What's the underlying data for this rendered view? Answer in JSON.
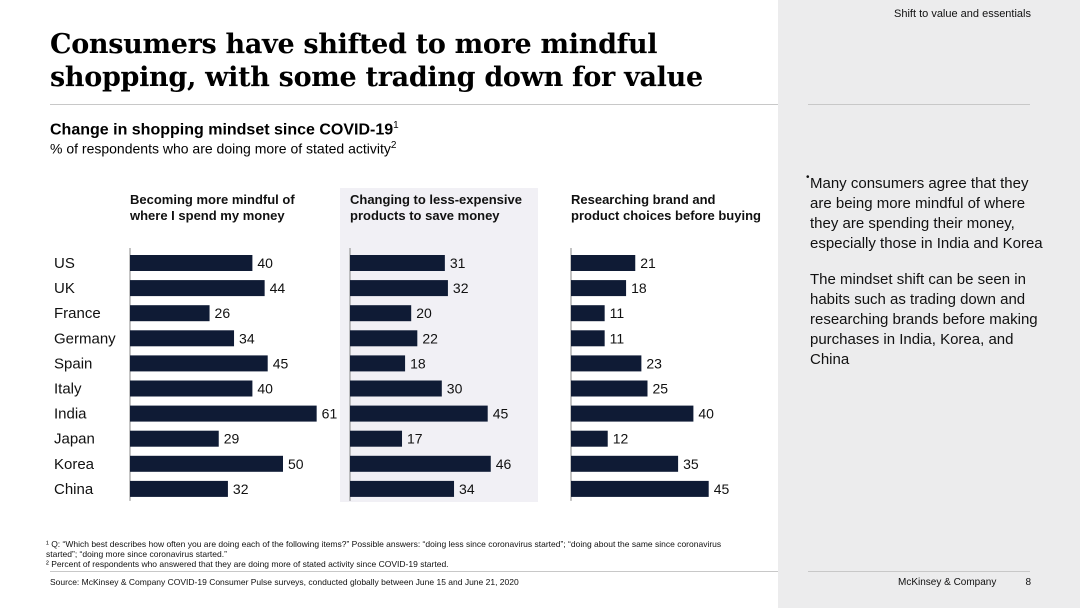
{
  "header": {
    "section_label": "Shift to value and essentials"
  },
  "title": "Consumers have shifted to more mindful shopping, with some trading down for value",
  "chart_title": "Change in shopping mindset since COVID-19",
  "chart_title_sup": "1",
  "chart_subtitle": "% of respondents who are doing more of stated activity",
  "chart_subtitle_sup": "2",
  "chart_data": {
    "type": "bar",
    "orientation": "horizontal",
    "categories": [
      "US",
      "UK",
      "France",
      "Germany",
      "Spain",
      "Italy",
      "India",
      "Japan",
      "Korea",
      "China"
    ],
    "panels": [
      {
        "title": [
          "Becoming more mindful of",
          "where I spend my money"
        ],
        "values": [
          40,
          44,
          26,
          34,
          45,
          40,
          61,
          29,
          50,
          32
        ],
        "highlight": false
      },
      {
        "title": [
          "Changing to less-expensive",
          "products to save money"
        ],
        "values": [
          31,
          32,
          20,
          22,
          18,
          30,
          45,
          17,
          46,
          34
        ],
        "highlight": true
      },
      {
        "title": [
          "Researching brand and",
          "product choices before buying"
        ],
        "values": [
          21,
          18,
          11,
          11,
          23,
          25,
          40,
          12,
          35,
          45
        ],
        "highlight": false
      }
    ],
    "colors": {
      "bar": "#0f1b35",
      "highlight_bg": "#f1f0f5"
    }
  },
  "notes": [
    "Many consumers agree that they are being more mindful of where they are spending their money, especially those in India and Korea",
    "The mindset shift can be seen in habits such as trading down and researching brands before making purchases in India, Korea, and China"
  ],
  "note_marker": "•",
  "footnotes": [
    "¹ Q: “Which best describes how often you are doing each of the following items?” Possible answers: “doing less since coronavirus started”; “doing about the same since coronavirus started”; “doing more since coronavirus started.”",
    "² Percent of respondents who answered that they are doing more of stated activity since COVID-19 started."
  ],
  "source": "Source: McKinsey & Company COVID-19 Consumer Pulse surveys, conducted globally between June 15 and June 21, 2020",
  "footer": {
    "brand": "McKinsey & Company",
    "page": "8"
  }
}
